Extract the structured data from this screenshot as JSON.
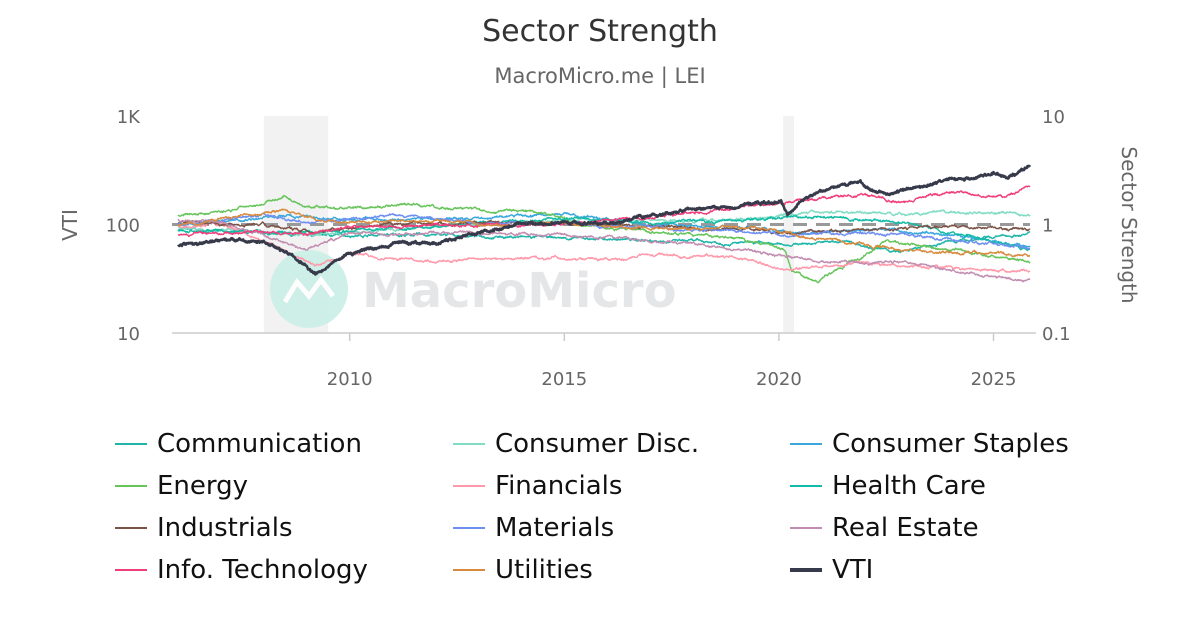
{
  "chart_data": {
    "type": "line",
    "title": "Sector Strength",
    "subtitle": "MacroMicro.me | LEI",
    "watermark": "MacroMicro",
    "x_ticks": [
      "2010",
      "2015",
      "2020",
      "2025"
    ],
    "xlim": [
      2006.0,
      2025.85
    ],
    "left_axis": {
      "label": "VTI",
      "scale": "log",
      "ylim": [
        10,
        1000
      ],
      "ticks": [
        "10",
        "100",
        "1K"
      ]
    },
    "right_axis": {
      "label": "Sector Strength",
      "scale": "log",
      "ylim": [
        0.1,
        10
      ],
      "ticks": [
        "0.1",
        "1",
        "10"
      ]
    },
    "reference_line": {
      "value": 1,
      "axis": "right",
      "style": "dashed",
      "color": "#999999"
    },
    "recession_bands": [
      [
        2008.0,
        2009.5
      ],
      [
        2020.1,
        2020.35
      ]
    ],
    "grid": false,
    "legend_placement": "bottom",
    "series": [
      {
        "name": "Communication",
        "axis": "right",
        "color": "#1fb5a8",
        "points": [
          [
            2006,
            0.9
          ],
          [
            2009,
            0.8
          ],
          [
            2012,
            0.8
          ],
          [
            2015,
            0.75
          ],
          [
            2018,
            0.7
          ],
          [
            2020,
            0.65
          ],
          [
            2021.5,
            0.7
          ],
          [
            2022.8,
            0.55
          ],
          [
            2024,
            0.7
          ],
          [
            2025.85,
            0.82
          ]
        ]
      },
      {
        "name": "Consumer Disc.",
        "axis": "right",
        "color": "#82dcc4",
        "points": [
          [
            2006,
            0.95
          ],
          [
            2009,
            0.8
          ],
          [
            2012,
            0.95
          ],
          [
            2015,
            1.1
          ],
          [
            2019,
            1.1
          ],
          [
            2020.5,
            1.3
          ],
          [
            2022,
            1.3
          ],
          [
            2023,
            1.25
          ],
          [
            2025,
            1.3
          ],
          [
            2025.85,
            1.2
          ]
        ]
      },
      {
        "name": "Consumer Staples",
        "axis": "right",
        "color": "#3aa8dc",
        "points": [
          [
            2006,
            1.0
          ],
          [
            2008.5,
            1.2
          ],
          [
            2010,
            1.1
          ],
          [
            2013,
            1.15
          ],
          [
            2015,
            1.25
          ],
          [
            2017,
            1.0
          ],
          [
            2019,
            0.95
          ],
          [
            2020.5,
            0.85
          ],
          [
            2022.5,
            0.9
          ],
          [
            2024,
            0.8
          ],
          [
            2025.85,
            0.62
          ]
        ]
      },
      {
        "name": "Energy",
        "axis": "right",
        "color": "#66c45a",
        "points": [
          [
            2006,
            1.2
          ],
          [
            2007,
            1.3
          ],
          [
            2008.5,
            1.8
          ],
          [
            2009,
            1.45
          ],
          [
            2010,
            1.4
          ],
          [
            2011.5,
            1.5
          ],
          [
            2013,
            1.35
          ],
          [
            2014.5,
            1.3
          ],
          [
            2015.5,
            1.0
          ],
          [
            2017,
            0.85
          ],
          [
            2019,
            0.75
          ],
          [
            2020.15,
            0.6
          ],
          [
            2020.3,
            0.38
          ],
          [
            2020.9,
            0.3
          ],
          [
            2021.5,
            0.4
          ],
          [
            2022.5,
            0.7
          ],
          [
            2023.5,
            0.6
          ],
          [
            2024.5,
            0.55
          ],
          [
            2025.85,
            0.45
          ]
        ]
      },
      {
        "name": "Financials",
        "axis": "right",
        "color": "#ff98aa",
        "points": [
          [
            2006,
            0.95
          ],
          [
            2007,
            1.0
          ],
          [
            2008,
            0.7
          ],
          [
            2009.2,
            0.42
          ],
          [
            2010,
            0.55
          ],
          [
            2011,
            0.48
          ],
          [
            2012,
            0.46
          ],
          [
            2014,
            0.5
          ],
          [
            2016,
            0.48
          ],
          [
            2017,
            0.52
          ],
          [
            2019,
            0.5
          ],
          [
            2020.2,
            0.38
          ],
          [
            2021,
            0.42
          ],
          [
            2022,
            0.44
          ],
          [
            2024,
            0.4
          ],
          [
            2025.85,
            0.37
          ]
        ]
      },
      {
        "name": "Health Care",
        "axis": "right",
        "color": "#14bba6",
        "points": [
          [
            2006,
            0.9
          ],
          [
            2009,
            0.85
          ],
          [
            2012,
            0.95
          ],
          [
            2015,
            1.15
          ],
          [
            2017,
            1.05
          ],
          [
            2019,
            1.1
          ],
          [
            2020.5,
            1.2
          ],
          [
            2022,
            1.1
          ],
          [
            2023,
            1.0
          ],
          [
            2024,
            0.85
          ],
          [
            2025.85,
            0.6
          ]
        ]
      },
      {
        "name": "Industrials",
        "axis": "right",
        "color": "#7a5246",
        "points": [
          [
            2006,
            1.05
          ],
          [
            2008,
            1.0
          ],
          [
            2009,
            0.85
          ],
          [
            2011,
            1.0
          ],
          [
            2014,
            1.05
          ],
          [
            2016,
            1.0
          ],
          [
            2019,
            0.9
          ],
          [
            2020.5,
            0.85
          ],
          [
            2022,
            0.9
          ],
          [
            2024,
            0.95
          ],
          [
            2025.85,
            0.9
          ]
        ]
      },
      {
        "name": "Materials",
        "axis": "right",
        "color": "#6f8ff0",
        "points": [
          [
            2006,
            1.0
          ],
          [
            2008,
            1.25
          ],
          [
            2009,
            1.05
          ],
          [
            2011,
            1.2
          ],
          [
            2013,
            1.05
          ],
          [
            2015,
            1.0
          ],
          [
            2017,
            0.95
          ],
          [
            2019,
            0.85
          ],
          [
            2020.5,
            0.8
          ],
          [
            2021.5,
            0.85
          ],
          [
            2023,
            0.8
          ],
          [
            2024.5,
            0.7
          ],
          [
            2025.85,
            0.6
          ]
        ]
      },
      {
        "name": "Real Estate",
        "axis": "right",
        "color": "#c28db0",
        "points": [
          [
            2006,
            1.1
          ],
          [
            2007,
            1.05
          ],
          [
            2009,
            0.6
          ],
          [
            2010,
            0.8
          ],
          [
            2012,
            0.85
          ],
          [
            2015,
            0.8
          ],
          [
            2017,
            0.72
          ],
          [
            2019,
            0.6
          ],
          [
            2020.3,
            0.5
          ],
          [
            2021,
            0.45
          ],
          [
            2023,
            0.45
          ],
          [
            2024,
            0.38
          ],
          [
            2025.85,
            0.3
          ]
        ]
      },
      {
        "name": "Info. Technology",
        "axis": "right",
        "color": "#f03e7c",
        "points": [
          [
            2006,
            0.8
          ],
          [
            2008,
            0.85
          ],
          [
            2009,
            0.82
          ],
          [
            2010,
            0.95
          ],
          [
            2015,
            1.0
          ],
          [
            2017,
            1.15
          ],
          [
            2019,
            1.4
          ],
          [
            2020.5,
            1.7
          ],
          [
            2021.9,
            1.9
          ],
          [
            2022.8,
            1.6
          ],
          [
            2024,
            2.0
          ],
          [
            2025.3,
            1.8
          ],
          [
            2025.85,
            2.35
          ]
        ]
      },
      {
        "name": "Utilities",
        "axis": "right",
        "color": "#d88a3e",
        "points": [
          [
            2006,
            1.0
          ],
          [
            2008,
            1.25
          ],
          [
            2008.5,
            1.35
          ],
          [
            2009.3,
            1.1
          ],
          [
            2010,
            1.05
          ],
          [
            2012,
            1.1
          ],
          [
            2013,
            1.0
          ],
          [
            2015,
            1.05
          ],
          [
            2016,
            0.95
          ],
          [
            2018,
            0.9
          ],
          [
            2019.5,
            0.95
          ],
          [
            2020.5,
            0.8
          ],
          [
            2022,
            0.65
          ],
          [
            2023.5,
            0.55
          ],
          [
            2025,
            0.55
          ],
          [
            2025.85,
            0.52
          ]
        ]
      },
      {
        "name": "VTI",
        "axis": "left",
        "color": "#363a4a",
        "points": [
          [
            2006,
            63
          ],
          [
            2007,
            72
          ],
          [
            2008,
            70
          ],
          [
            2008.7,
            50
          ],
          [
            2009.2,
            35
          ],
          [
            2010,
            55
          ],
          [
            2011,
            65
          ],
          [
            2012,
            68
          ],
          [
            2013,
            85
          ],
          [
            2014,
            100
          ],
          [
            2015,
            105
          ],
          [
            2016,
            100
          ],
          [
            2017,
            120
          ],
          [
            2018,
            140
          ],
          [
            2019,
            145
          ],
          [
            2020.05,
            165
          ],
          [
            2020.2,
            120
          ],
          [
            2020.5,
            160
          ],
          [
            2021,
            210
          ],
          [
            2021.9,
            245
          ],
          [
            2022.5,
            190
          ],
          [
            2023,
            210
          ],
          [
            2024,
            250
          ],
          [
            2025.0,
            300
          ],
          [
            2025.3,
            260
          ],
          [
            2025.85,
            340
          ]
        ]
      }
    ]
  }
}
